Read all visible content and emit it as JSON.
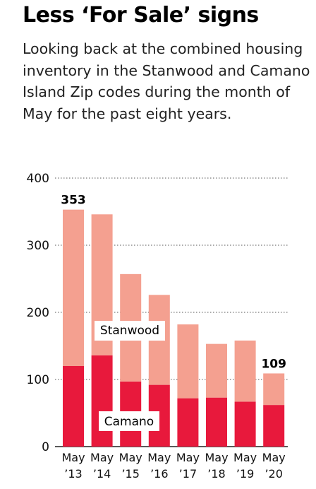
{
  "title": "Less ‘For Sale’ signs",
  "subtitle": "Looking back at the combined housing inventory in the Stanwood and Camano Island Zip codes during the month of May for the past eight years.",
  "chart_data": {
    "type": "bar",
    "stacked": true,
    "categories": [
      "May '13",
      "May '14",
      "May '15",
      "May '16",
      "May '17",
      "May '18",
      "May '19",
      "May '20"
    ],
    "category_lines": [
      [
        "May",
        "’13"
      ],
      [
        "May",
        "’14"
      ],
      [
        "May",
        "’15"
      ],
      [
        "May",
        "’16"
      ],
      [
        "May",
        "’17"
      ],
      [
        "May",
        "’18"
      ],
      [
        "May",
        "’19"
      ],
      [
        "May",
        "’20"
      ]
    ],
    "series": [
      {
        "name": "Camano",
        "color": "#e8193c",
        "values": [
          120,
          136,
          97,
          92,
          72,
          73,
          67,
          62
        ]
      },
      {
        "name": "Stanwood",
        "color": "#f4a090",
        "values": [
          233,
          210,
          160,
          134,
          110,
          80,
          91,
          47
        ]
      }
    ],
    "totals": [
      353,
      346,
      257,
      226,
      182,
      153,
      158,
      109
    ],
    "data_labels": [
      {
        "index": 0,
        "text": "353"
      },
      {
        "index": 7,
        "text": "109"
      }
    ],
    "yticks": [
      0,
      100,
      200,
      300,
      400
    ],
    "ylim": [
      0,
      400
    ],
    "grid": "dotted horizontal",
    "legend": "inline labels on bars"
  }
}
